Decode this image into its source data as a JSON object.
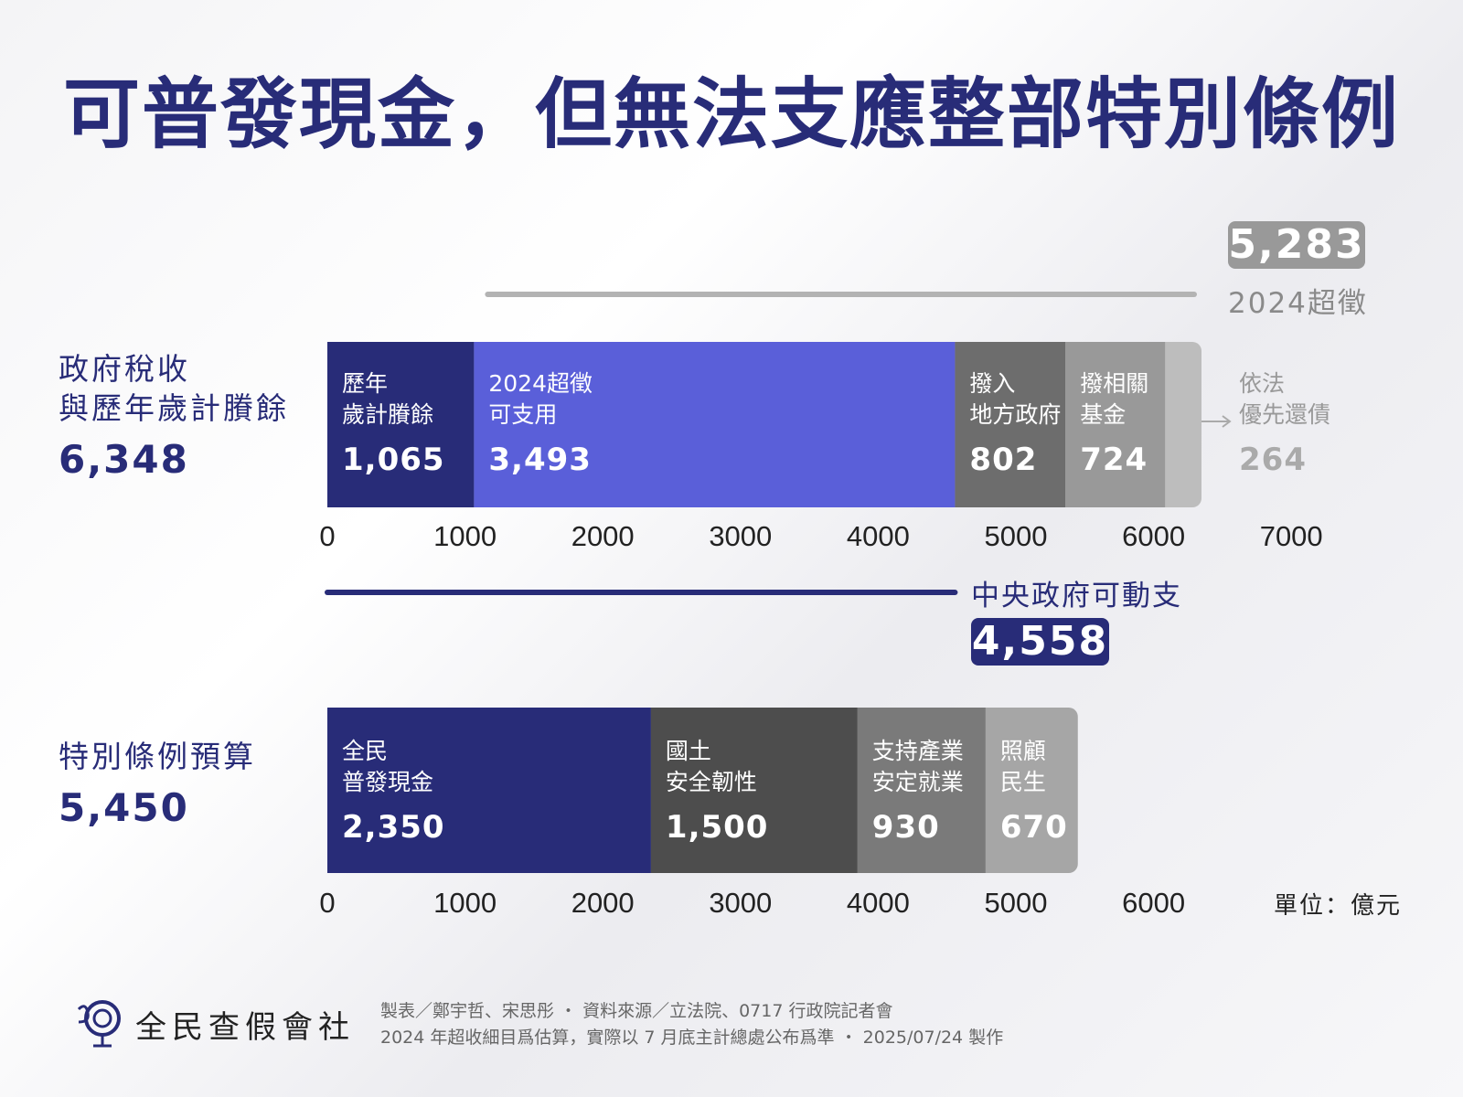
{
  "title": "可普發現金，但無法支應整部特別條例",
  "top_row": {
    "label_line1": "政府稅收",
    "label_line2": "與歷年歲計賸餘",
    "total": "6,348",
    "segments": [
      {
        "name": "歷年歲計賸餘",
        "line1": "歷年",
        "line2": "歲計賸餘",
        "value": 1065,
        "value_label": "1,065",
        "color": "#282c78"
      },
      {
        "name": "2024超徵可支用",
        "line1": "2024超徵",
        "line2": "可支用",
        "value": 3493,
        "value_label": "3,493",
        "color": "#5a5fd9"
      },
      {
        "name": "撥入地方政府",
        "line1": "撥入",
        "line2": "地方政府",
        "value": 802,
        "value_label": "802",
        "color": "#6d6d6d"
      },
      {
        "name": "撥相關基金",
        "line1": "撥相關",
        "line2": "基金",
        "value": 724,
        "value_label": "724",
        "color": "#999999"
      },
      {
        "name": "依法優先還債",
        "line1": "依法",
        "line2": "優先還債",
        "value": 264,
        "value_label": "264",
        "color": "#bdbdbd"
      }
    ],
    "ticks": [
      "0",
      "1000",
      "2000",
      "3000",
      "4000",
      "5000",
      "6000",
      "7000"
    ]
  },
  "overcollection": {
    "value": "5,283",
    "label": "2024超徵"
  },
  "central_gov": {
    "label": "中央政府可動支",
    "value": "4,558"
  },
  "bottom_row": {
    "label_line1": "特別條例預算",
    "total": "5,450",
    "segments": [
      {
        "name": "全民普發現金",
        "line1": "全民",
        "line2": "普發現金",
        "value": 2350,
        "value_label": "2,350",
        "color": "#282c78"
      },
      {
        "name": "國土安全韌性",
        "line1": "國土",
        "line2": "安全韌性",
        "value": 1500,
        "value_label": "1,500",
        "color": "#4d4d4d"
      },
      {
        "name": "支持產業安定就業",
        "line1": "支持產業",
        "line2": "安定就業",
        "value": 930,
        "value_label": "930",
        "color": "#7a7a7a"
      },
      {
        "name": "照顧民生",
        "line1": "照顧",
        "line2": "民生",
        "value": 670,
        "value_label": "670",
        "color": "#a6a6a6"
      }
    ],
    "ticks": [
      "0",
      "1000",
      "2000",
      "3000",
      "4000",
      "5000",
      "6000"
    ]
  },
  "unit": "單位：億元",
  "footer": {
    "logo_text": "全民查假會社",
    "credits_line1": "製表／鄭宇哲、宋思彤 ・ 資料來源／立法院、0717 行政院記者會",
    "credits_line2": "2024 年超收細目爲估算，實際以 7 月底主計總處公布爲準 ・ 2025/07/24 製作"
  },
  "chart_data": {
    "type": "bar",
    "orientation": "horizontal-stacked",
    "title": "可普發現金，但無法支應整部特別條例",
    "unit": "億元",
    "xlim": [
      0,
      7000
    ],
    "categories": [
      "政府稅收與歷年歲計賸餘",
      "特別條例預算"
    ],
    "series": [
      {
        "name": "歷年歲計賸餘",
        "values": [
          1065,
          null
        ]
      },
      {
        "name": "2024超徵可支用",
        "values": [
          3493,
          null
        ]
      },
      {
        "name": "撥入地方政府",
        "values": [
          802,
          null
        ]
      },
      {
        "name": "撥相關基金",
        "values": [
          724,
          null
        ]
      },
      {
        "name": "依法優先還債",
        "values": [
          264,
          null
        ]
      },
      {
        "name": "全民普發現金",
        "values": [
          null,
          2350
        ]
      },
      {
        "name": "國土安全韌性",
        "values": [
          null,
          1500
        ]
      },
      {
        "name": "支持產業安定就業",
        "values": [
          null,
          930
        ]
      },
      {
        "name": "照顧民生",
        "values": [
          null,
          670
        ]
      }
    ],
    "totals": [
      6348,
      5450
    ],
    "annotations": [
      {
        "label": "2024超徵",
        "value": 5283
      },
      {
        "label": "中央政府可動支",
        "value": 4558
      }
    ],
    "grid": false
  }
}
